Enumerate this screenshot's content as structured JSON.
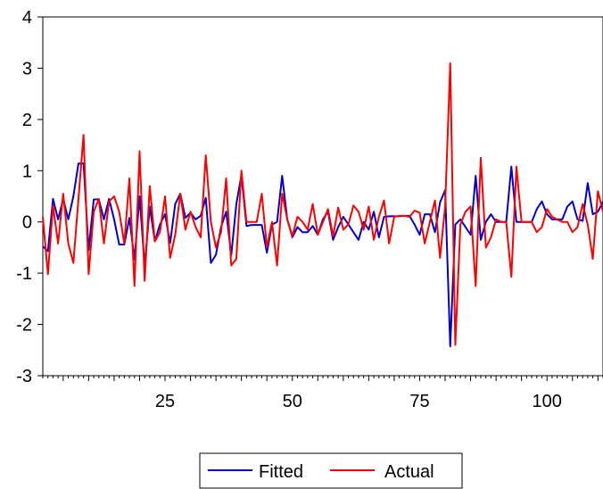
{
  "chart_data": {
    "type": "line",
    "title": "",
    "xlabel": "",
    "ylabel": "",
    "xlim": [
      1,
      111
    ],
    "ylim": [
      -3,
      4
    ],
    "x_ticks": [
      25,
      50,
      75,
      100
    ],
    "y_ticks": [
      -3,
      -2,
      -1,
      0,
      1,
      2,
      3,
      4
    ],
    "x_tick_labels": [
      "25",
      "50",
      "75",
      "100"
    ],
    "y_tick_labels": [
      "-3",
      "-2",
      "-1",
      "0",
      "1",
      "2",
      "3",
      "4"
    ],
    "grid": false,
    "legend_position": "bottom-center",
    "x": [
      1,
      2,
      3,
      4,
      5,
      6,
      7,
      8,
      9,
      10,
      11,
      12,
      13,
      14,
      15,
      16,
      17,
      18,
      19,
      20,
      21,
      22,
      23,
      24,
      25,
      26,
      27,
      28,
      29,
      30,
      31,
      32,
      33,
      34,
      35,
      36,
      37,
      38,
      39,
      40,
      41,
      42,
      43,
      44,
      45,
      46,
      47,
      48,
      49,
      50,
      51,
      52,
      53,
      54,
      55,
      56,
      57,
      58,
      59,
      60,
      61,
      62,
      63,
      64,
      65,
      66,
      67,
      68,
      69,
      70,
      71,
      72,
      73,
      74,
      75,
      76,
      77,
      78,
      79,
      80,
      81,
      82,
      83,
      84,
      85,
      86,
      87,
      88,
      89,
      90,
      91,
      92,
      93,
      94,
      95,
      96,
      97,
      98,
      99,
      100,
      101,
      102,
      103,
      104,
      105,
      106,
      107,
      108,
      109,
      110,
      111
    ],
    "series": [
      {
        "name": "Fitted",
        "color": "#0000cc",
        "values": [
          -0.48,
          -0.57,
          0.45,
          0.05,
          0.45,
          0.05,
          0.5,
          1.14,
          1.14,
          -0.55,
          0.44,
          0.44,
          0.05,
          0.45,
          0.05,
          -0.44,
          -0.44,
          0.08,
          -0.73,
          0.5,
          -0.86,
          0.3,
          -0.38,
          -0.05,
          0.15,
          -0.41,
          0.35,
          0.55,
          0.08,
          0.18,
          0.05,
          0.12,
          0.47,
          -0.8,
          -0.64,
          -0.1,
          0.2,
          -0.65,
          0.35,
          0.91,
          -0.08,
          -0.06,
          -0.06,
          -0.06,
          -0.6,
          -0.05,
          0.0,
          0.9,
          0.05,
          -0.3,
          -0.1,
          -0.2,
          -0.2,
          -0.08,
          -0.25,
          0.05,
          0.2,
          -0.35,
          -0.1,
          0.1,
          -0.05,
          -0.2,
          -0.35,
          0.0,
          -0.15,
          0.2,
          -0.3,
          0.1,
          0.11,
          0.11,
          0.11,
          0.12,
          0.12,
          -0.05,
          -0.25,
          0.15,
          0.15,
          -0.2,
          0.38,
          0.62,
          -2.43,
          -0.05,
          0.05,
          -0.1,
          -0.25,
          0.9,
          -0.35,
          0.0,
          0.15,
          0.0,
          0.0,
          0.0,
          1.08,
          0.0,
          0.0,
          0.0,
          0.0,
          0.25,
          0.4,
          0.15,
          0.05,
          0.05,
          0.05,
          0.3,
          0.4,
          0.05,
          0.02,
          0.76,
          0.15,
          0.2,
          0.4
        ]
      },
      {
        "name": "Actual",
        "color": "#ff0000",
        "values": [
          0.1,
          -1.02,
          0.32,
          -0.42,
          0.55,
          -0.42,
          -0.8,
          0.45,
          1.7,
          -1.02,
          0.2,
          0.45,
          -0.42,
          0.4,
          0.5,
          0.2,
          -0.42,
          0.85,
          -1.25,
          1.38,
          -1.15,
          0.7,
          -0.38,
          -0.2,
          0.5,
          -0.7,
          -0.25,
          0.55,
          -0.15,
          0.2,
          -0.1,
          -0.3,
          1.3,
          0.0,
          -0.5,
          -0.2,
          0.85,
          -0.85,
          -0.72,
          1.0,
          0.0,
          0.0,
          0.0,
          0.55,
          -0.5,
          0.0,
          -0.85,
          0.55,
          0.05,
          -0.28,
          0.1,
          0.0,
          -0.15,
          0.35,
          -0.25,
          0.0,
          0.25,
          -0.28,
          0.28,
          -0.15,
          -0.05,
          0.32,
          0.2,
          -0.15,
          0.3,
          -0.35,
          0.1,
          0.42,
          -0.42,
          0.1,
          0.12,
          0.12,
          0.1,
          0.22,
          0.18,
          -0.42,
          0.0,
          0.42,
          -0.7,
          0.3,
          3.1,
          -2.4,
          -0.05,
          0.2,
          0.3,
          -1.25,
          1.25,
          -0.5,
          -0.3,
          0.05,
          0.0,
          0.0,
          -1.07,
          1.08,
          0.0,
          0.0,
          0.0,
          -0.2,
          -0.1,
          0.25,
          0.1,
          0.05,
          0.0,
          0.0,
          -0.2,
          -0.1,
          0.35,
          -0.05,
          -0.72,
          0.6,
          0.2
        ]
      }
    ]
  }
}
